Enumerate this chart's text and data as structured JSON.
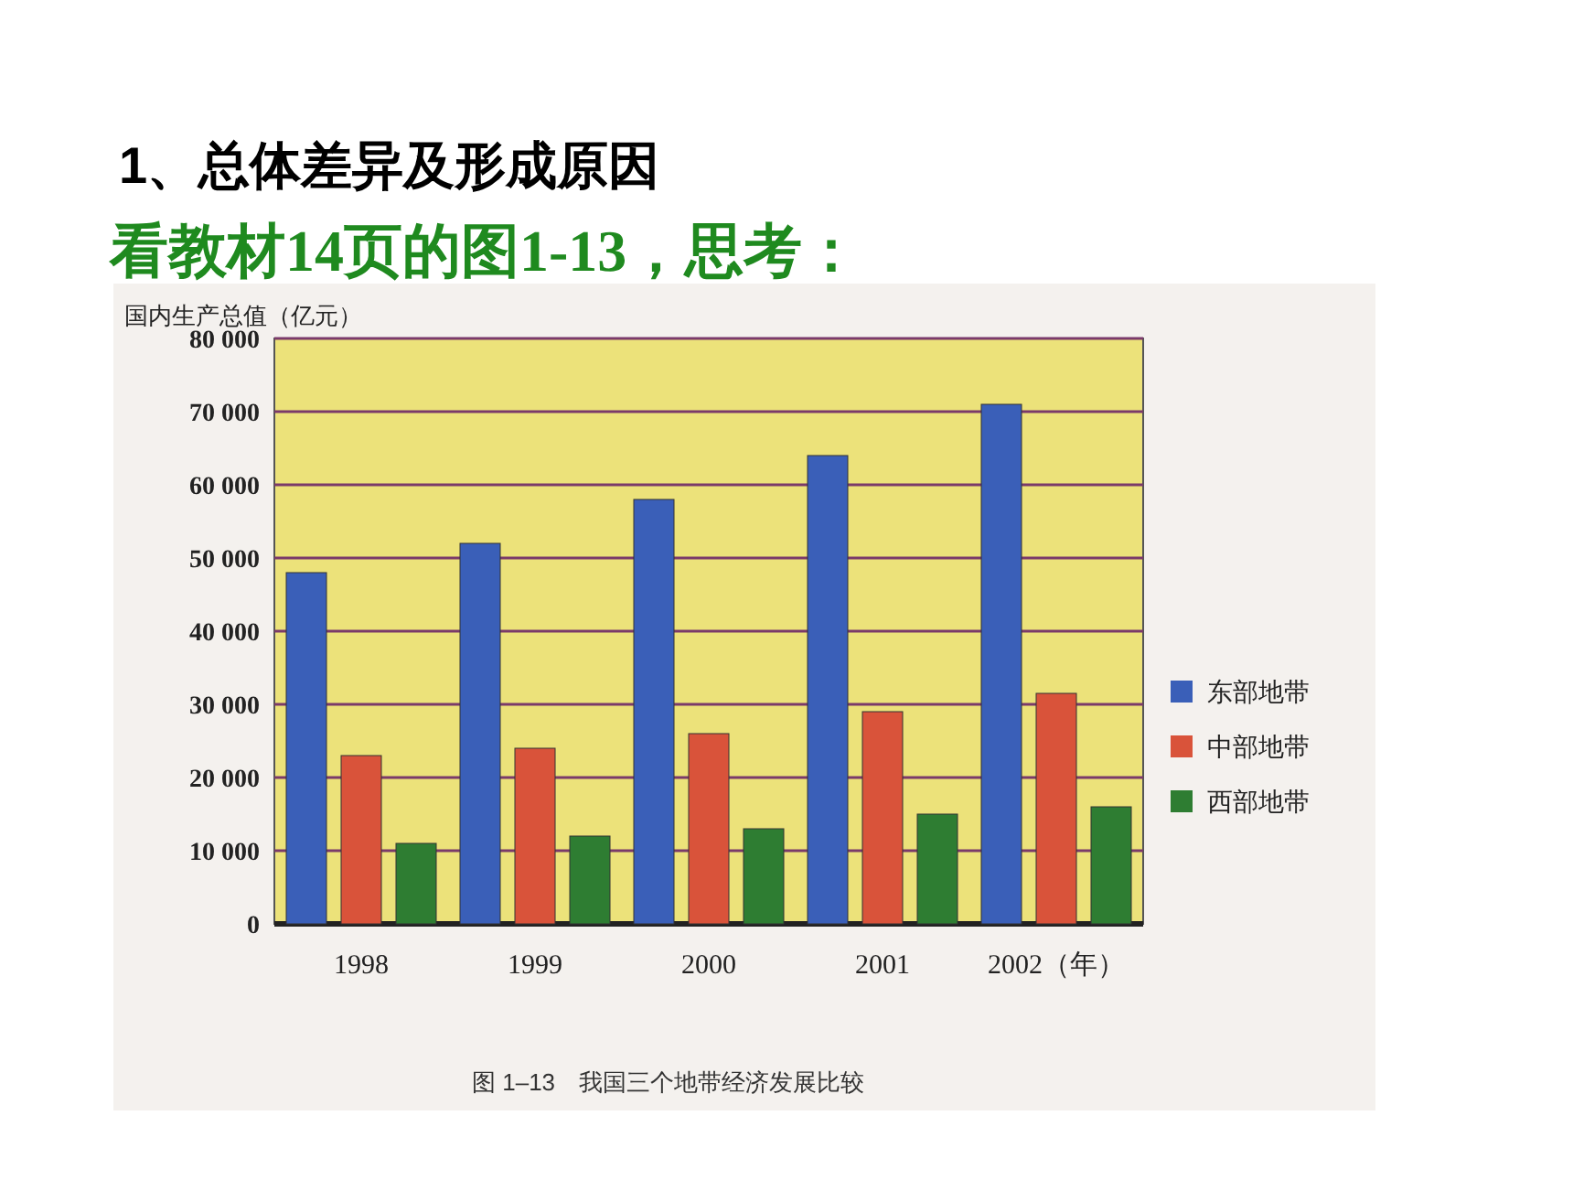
{
  "chart_data": {
    "type": "bar",
    "title": "1、总体差异及形成原因",
    "subtitle": "看教材14页的图1-13，思考：",
    "ylabel": "国内生产总值（亿元）",
    "categories": [
      "1998",
      "1999",
      "2000",
      "2001",
      "2002（年）"
    ],
    "series": [
      {
        "name": "东部地带",
        "color": "#3a5fb8",
        "values": [
          48000,
          52000,
          58000,
          64000,
          71000
        ]
      },
      {
        "name": "中部地带",
        "color": "#d9533a",
        "values": [
          23000,
          24000,
          26000,
          29000,
          31500
        ]
      },
      {
        "name": "西部地带",
        "color": "#2e7d32",
        "values": [
          11000,
          12000,
          13000,
          15000,
          16000
        ]
      }
    ],
    "ylim": [
      0,
      80000
    ],
    "yticks": [
      {
        "value": 0,
        "label": "0"
      },
      {
        "value": 10000,
        "label": "10 000"
      },
      {
        "value": 20000,
        "label": "20 000"
      },
      {
        "value": 30000,
        "label": "30 000"
      },
      {
        "value": 40000,
        "label": "40 000"
      },
      {
        "value": 50000,
        "label": "50 000"
      },
      {
        "value": 60000,
        "label": "60 000"
      },
      {
        "value": 70000,
        "label": "70 000"
      },
      {
        "value": 80000,
        "label": "80 000"
      }
    ],
    "grid": "y",
    "legend": "right",
    "annotations": [
      "图 1–13　我国三个地带经济发展比较"
    ]
  }
}
